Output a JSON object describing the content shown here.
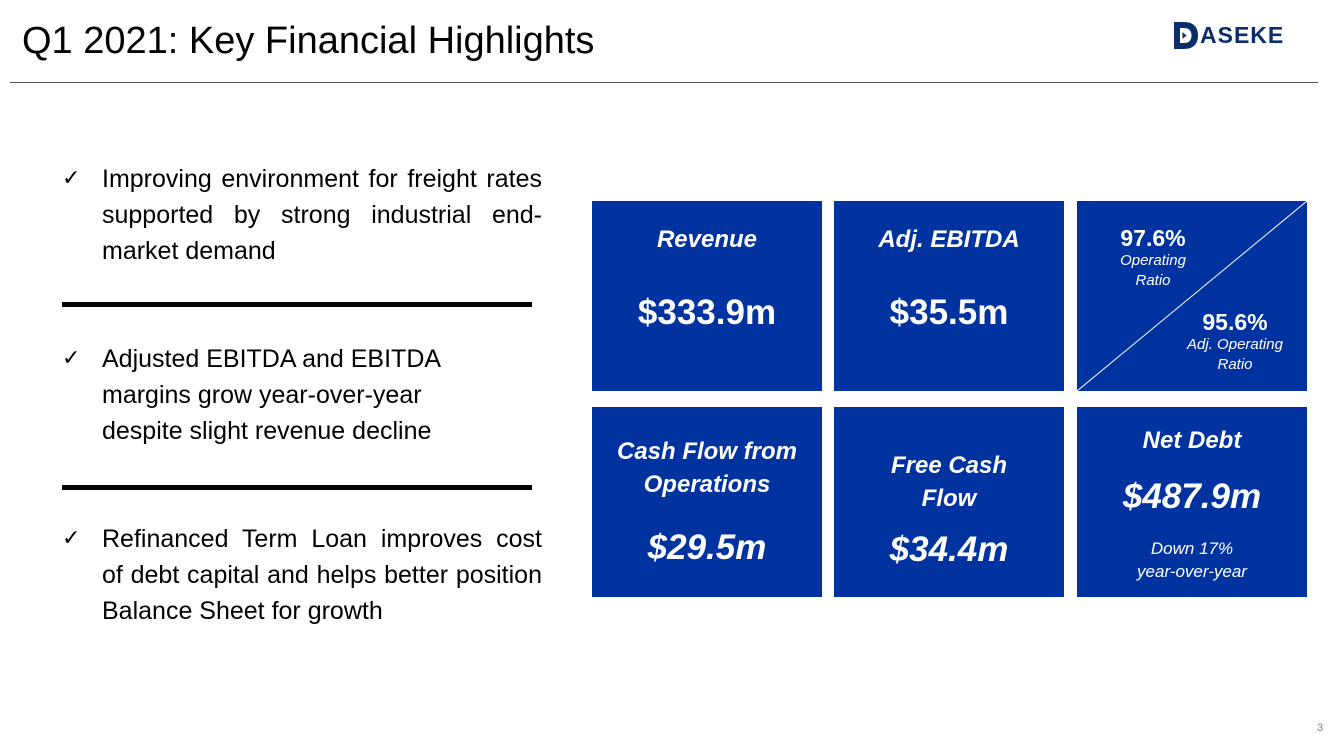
{
  "slide": {
    "title": "Q1 2021: Key Financial Highlights",
    "logo_text": "ASEKE",
    "page_number": "3"
  },
  "bullets": [
    {
      "text": "Improving environment for freight rates supported by strong industrial end-market demand"
    },
    {
      "text": "Adjusted EBITDA and EBITDA margins grow year-over-year despite slight revenue decline"
    },
    {
      "text": "Refinanced Term Loan improves cost of debt capital and helps better position Balance Sheet for growth"
    }
  ],
  "check_glyph": "✓",
  "tiles": {
    "revenue": {
      "label": "Revenue",
      "value": "$333.9m"
    },
    "adj_ebitda": {
      "label": "Adj. EBITDA",
      "value": "$35.5m"
    },
    "operating_ratio": {
      "value": "97.6%",
      "label_line1": "Operating",
      "label_line2": "Ratio"
    },
    "adj_operating_ratio": {
      "value": "95.6%",
      "label_line1": "Adj. Operating",
      "label_line2": "Ratio"
    },
    "cash_flow_operations": {
      "label_line1": "Cash Flow from",
      "label_line2": "Operations",
      "value": "$29.5m"
    },
    "free_cash_flow": {
      "label_line1": "Free Cash",
      "label_line2": "Flow",
      "value": "$34.4m"
    },
    "net_debt": {
      "label": "Net Debt",
      "value": "$487.9m",
      "note_line1": "Down 17%",
      "note_line2": "year-over-year"
    }
  },
  "colors": {
    "tile_background": "#0033a0",
    "logo_blue": "#0b2d6b",
    "text": "#000000",
    "tile_text": "#ffffff"
  }
}
